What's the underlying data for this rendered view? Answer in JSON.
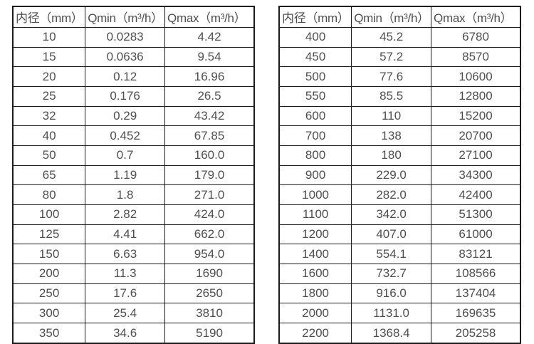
{
  "colors": {
    "border": "#1c1c1c",
    "text": "#4f4f4f",
    "background": "#ffffff"
  },
  "tables": [
    {
      "name": "flow-table-dn10-350",
      "headers": [
        "内径（mm）",
        "Qmin（m³/h）",
        "Qmax（m³/h）"
      ],
      "rows": [
        [
          "10",
          "0.0283",
          "4.42"
        ],
        [
          "15",
          "0.0636",
          "9.54"
        ],
        [
          "20",
          "0.12",
          "16.96"
        ],
        [
          "25",
          "0.176",
          "26.5"
        ],
        [
          "32",
          "0.29",
          "43.42"
        ],
        [
          "40",
          "0.452",
          "67.85"
        ],
        [
          "50",
          "0.7",
          "160.0"
        ],
        [
          "65",
          "1.19",
          "179.0"
        ],
        [
          "80",
          "1.8",
          "271.0"
        ],
        [
          "100",
          "2.82",
          "424.0"
        ],
        [
          "125",
          "4.41",
          "662.0"
        ],
        [
          "150",
          "6.63",
          "954.0"
        ],
        [
          "200",
          "11.3",
          "1690"
        ],
        [
          "250",
          "17.6",
          "2650"
        ],
        [
          "300",
          "25.4",
          "3810"
        ],
        [
          "350",
          "34.6",
          "5190"
        ]
      ]
    },
    {
      "name": "flow-table-dn400-2200",
      "headers": [
        "内径（mm）",
        "Qmin（m³/h）",
        "Qmax（m³/h）"
      ],
      "rows": [
        [
          "400",
          "45.2",
          "6780"
        ],
        [
          "450",
          "57.2",
          "8570"
        ],
        [
          "500",
          "77.6",
          "10600"
        ],
        [
          "550",
          "85.5",
          "12800"
        ],
        [
          "600",
          "110",
          "15200"
        ],
        [
          "700",
          "138",
          "20700"
        ],
        [
          "800",
          "180",
          "27100"
        ],
        [
          "900",
          "229.0",
          "34300"
        ],
        [
          "1000",
          "282.0",
          "42400"
        ],
        [
          "1100",
          "342.0",
          "51300"
        ],
        [
          "1200",
          "407.0",
          "61000"
        ],
        [
          "1400",
          "554.1",
          "83121"
        ],
        [
          "1600",
          "732.7",
          "108566"
        ],
        [
          "1800",
          "916.0",
          "137404"
        ],
        [
          "2000",
          "1131.0",
          "169635"
        ],
        [
          "2200",
          "1368.4",
          "205258"
        ]
      ]
    }
  ]
}
